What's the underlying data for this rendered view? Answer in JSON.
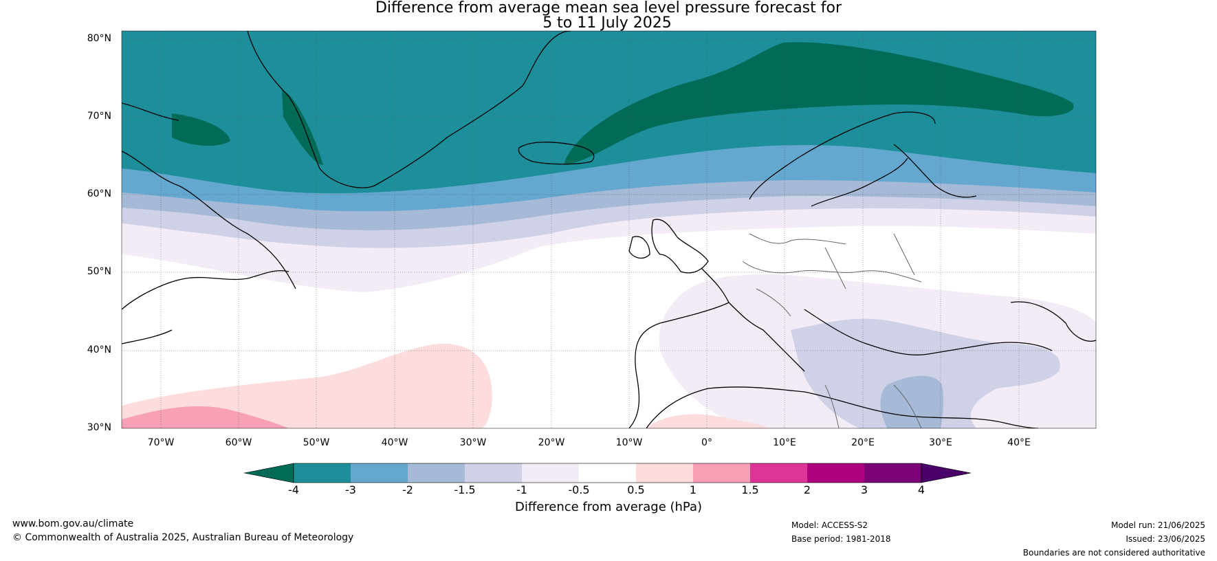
{
  "title_line1": "Difference from average mean sea level pressure forecast for",
  "title_line2": "5 to 11 July 2025",
  "lat_labels": [
    "80°N",
    "70°N",
    "60°N",
    "50°N",
    "40°N",
    "30°N"
  ],
  "lon_labels": [
    "70°W",
    "60°W",
    "50°W",
    "40°W",
    "30°W",
    "20°W",
    "10°W",
    "0°",
    "10°E",
    "20°E",
    "30°E",
    "40°E"
  ],
  "colorbar": {
    "ticks": [
      "-4",
      "-3",
      "-2",
      "-1.5",
      "-1",
      "-0.5",
      "0.5",
      "1",
      "1.5",
      "2",
      "3",
      "4"
    ],
    "colors": [
      "#016b57",
      "#1c8f9a",
      "#64a8cf",
      "#a6bad8",
      "#cfd1e6",
      "#f3ecf6",
      "#ffffff",
      "#fcdcdc",
      "#f8a0b6",
      "#dd3497",
      "#ae017e",
      "#7a0177",
      "#49006a"
    ],
    "label": "Difference from average (hPa)"
  },
  "footer": {
    "url": "www.bom.gov.au/climate",
    "copyright": "© Commonwealth of Australia 2025, Australian Bureau of Meteorology",
    "model": "Model: ACCESS-S2",
    "base_period": "Base period: 1981-2018",
    "model_run": "Model run: 21/06/2025",
    "issued": "Issued: 23/06/2025",
    "disclaimer": "Boundaries are not considered authoritative"
  }
}
